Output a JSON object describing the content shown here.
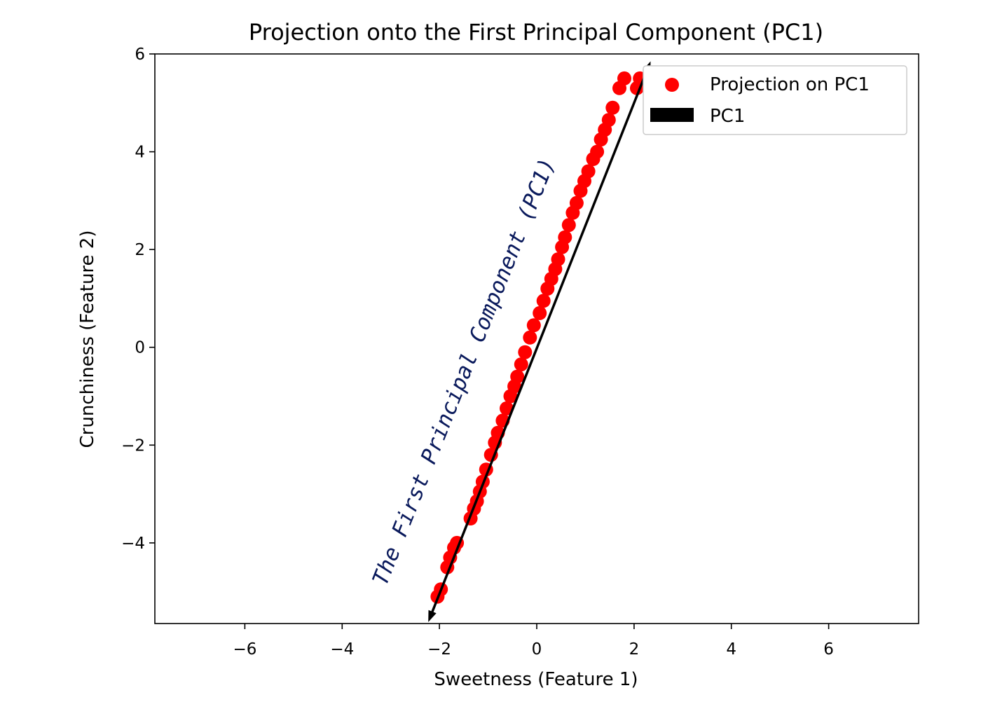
{
  "chart_data": {
    "type": "scatter",
    "title": "Projection onto the First Principal Component (PC1)",
    "xlabel": "Sweetness (Feature 1)",
    "ylabel": "Crunchiness (Feature 2)",
    "xlim": [
      -7.85,
      7.85
    ],
    "ylim": [
      -5.65,
      6.0
    ],
    "xticks": [
      -6,
      -4,
      -2,
      0,
      2,
      4,
      6
    ],
    "yticks": [
      -4,
      -2,
      0,
      2,
      4,
      6
    ],
    "xtick_labels": [
      "−6",
      "−4",
      "−2",
      "0",
      "2",
      "4",
      "6"
    ],
    "ytick_labels": [
      "−4",
      "−2",
      "0",
      "2",
      "4",
      "6"
    ],
    "grid": false,
    "legend_position": "top-right",
    "colors": {
      "points": "#ff0000",
      "arrow": "#000000",
      "annotation": "#0a1a5c"
    },
    "series": [
      {
        "name": "Projection on PC1",
        "kind": "scatter",
        "x": [
          -2.04,
          -1.97,
          -1.84,
          -1.78,
          -1.7,
          -1.64,
          -1.36,
          -1.29,
          -1.23,
          -1.17,
          -1.11,
          -1.04,
          -0.94,
          -0.86,
          -0.8,
          -0.7,
          -0.62,
          -0.54,
          -0.46,
          -0.4,
          -0.32,
          -0.24,
          -0.14,
          -0.06,
          0.06,
          0.14,
          0.22,
          0.3,
          0.38,
          0.44,
          0.52,
          0.58,
          0.66,
          0.74,
          0.82,
          0.9,
          0.98,
          1.06,
          1.16,
          1.24,
          1.32,
          1.4,
          1.48,
          1.56,
          1.7,
          1.8,
          2.06,
          2.12
        ],
        "y": [
          -5.1,
          -4.95,
          -4.5,
          -4.3,
          -4.1,
          -4.0,
          -3.5,
          -3.3,
          -3.15,
          -2.95,
          -2.75,
          -2.5,
          -2.2,
          -1.95,
          -1.75,
          -1.5,
          -1.25,
          -1.0,
          -0.8,
          -0.6,
          -0.35,
          -0.1,
          0.2,
          0.45,
          0.7,
          0.95,
          1.2,
          1.4,
          1.6,
          1.8,
          2.05,
          2.25,
          2.5,
          2.75,
          2.95,
          3.2,
          3.4,
          3.6,
          3.85,
          4.0,
          4.25,
          4.45,
          4.65,
          4.9,
          5.3,
          5.5,
          5.3,
          5.5
        ]
      },
      {
        "name": "PC1",
        "kind": "double-arrow",
        "x": [
          -2.23,
          2.34
        ],
        "y": [
          -5.62,
          5.85
        ]
      }
    ],
    "annotations": [
      {
        "text": "The First Principal Component (PC1)",
        "x": -3.1,
        "y": -4.9,
        "angle": 68.3
      }
    ]
  }
}
